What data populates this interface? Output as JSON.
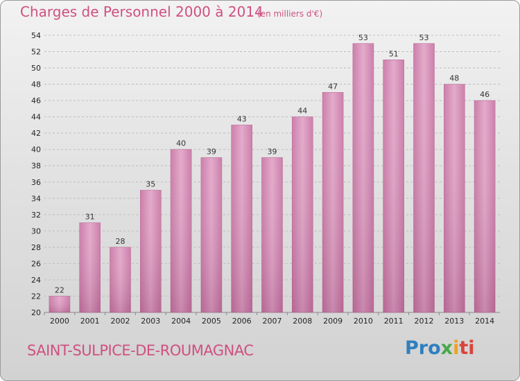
{
  "title": "Charges de Personnel 2000 à 2014",
  "unit": "(en milliers d'€)",
  "location": "SAINT-SULPICE-DE-ROUMAGNAC",
  "logo": {
    "p1": "Pro",
    "p2": "x",
    "p3": "i",
    "p4": "ti"
  },
  "colors": {
    "bar": "#d98fb8",
    "text_accent": "#cf5080"
  },
  "chart_data": {
    "type": "bar",
    "title": "Charges de Personnel 2000 à 2014",
    "xlabel": "",
    "ylabel": "",
    "categories": [
      "2000",
      "2001",
      "2002",
      "2003",
      "2004",
      "2005",
      "2006",
      "2007",
      "2008",
      "2009",
      "2010",
      "2011",
      "2012",
      "2013",
      "2014"
    ],
    "values": [
      22,
      31,
      28,
      35,
      40,
      39,
      43,
      39,
      44,
      47,
      53,
      51,
      53,
      48,
      46
    ],
    "ylim": [
      20,
      54
    ],
    "yticks": [
      20,
      22,
      24,
      26,
      28,
      30,
      32,
      34,
      36,
      38,
      40,
      42,
      44,
      46,
      48,
      50,
      52,
      54
    ],
    "grid": true,
    "legend": "none"
  }
}
